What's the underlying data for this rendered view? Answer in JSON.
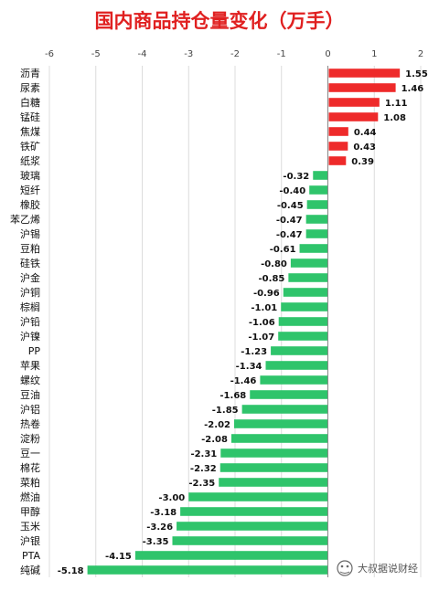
{
  "chart_data": {
    "type": "bar",
    "orientation": "horizontal",
    "title": "国内商品持仓量变化（万手）",
    "xlim": [
      -6,
      2
    ],
    "xticks": [
      -6,
      -5,
      -4,
      -3,
      -2,
      -1,
      0,
      1,
      2
    ],
    "grid": true,
    "positive_color": "#ee2a2a",
    "negative_color": "#2fc46b",
    "categories": [
      "沥青",
      "尿素",
      "白糖",
      "锰硅",
      "焦煤",
      "铁矿",
      "纸浆",
      "玻璃",
      "短纤",
      "橡胶",
      "苯乙烯",
      "沪锡",
      "豆粕",
      "硅铁",
      "沪金",
      "沪铜",
      "棕榈",
      "沪铅",
      "沪镍",
      "PP",
      "苹果",
      "螺纹",
      "豆油",
      "沪铝",
      "热卷",
      "淀粉",
      "豆一",
      "棉花",
      "菜粕",
      "燃油",
      "甲醇",
      "玉米",
      "沪银",
      "PTA",
      "纯碱"
    ],
    "values": [
      1.55,
      1.46,
      1.11,
      1.08,
      0.44,
      0.43,
      0.39,
      -0.32,
      -0.4,
      -0.45,
      -0.47,
      -0.47,
      -0.61,
      -0.8,
      -0.85,
      -0.96,
      -1.01,
      -1.06,
      -1.07,
      -1.23,
      -1.34,
      -1.46,
      -1.68,
      -1.85,
      -2.02,
      -2.08,
      -2.31,
      -2.32,
      -2.35,
      -3.0,
      -3.18,
      -3.26,
      -3.35,
      -4.15,
      -5.18
    ],
    "labels": [
      "1.55",
      "1.46",
      "1.11",
      "1.08",
      "0.44",
      "0.43",
      "0.39",
      "-0.32",
      "-0.40",
      "-0.45",
      "-0.47",
      "-0.47",
      "-0.61",
      "-0.80",
      "-0.85",
      "-0.96",
      "-1.01",
      "-1.06",
      "-1.07",
      "-1.23",
      "-1.34",
      "-1.46",
      "-1.68",
      "-1.85",
      "-2.02",
      "-2.08",
      "-2.31",
      "-2.32",
      "-2.35",
      "-3.00",
      "-3.18",
      "-3.26",
      "-3.35",
      "-4.15",
      "-5.18"
    ]
  },
  "watermark": {
    "text": "大叔据说财经",
    "icon": "wechat-icon"
  }
}
